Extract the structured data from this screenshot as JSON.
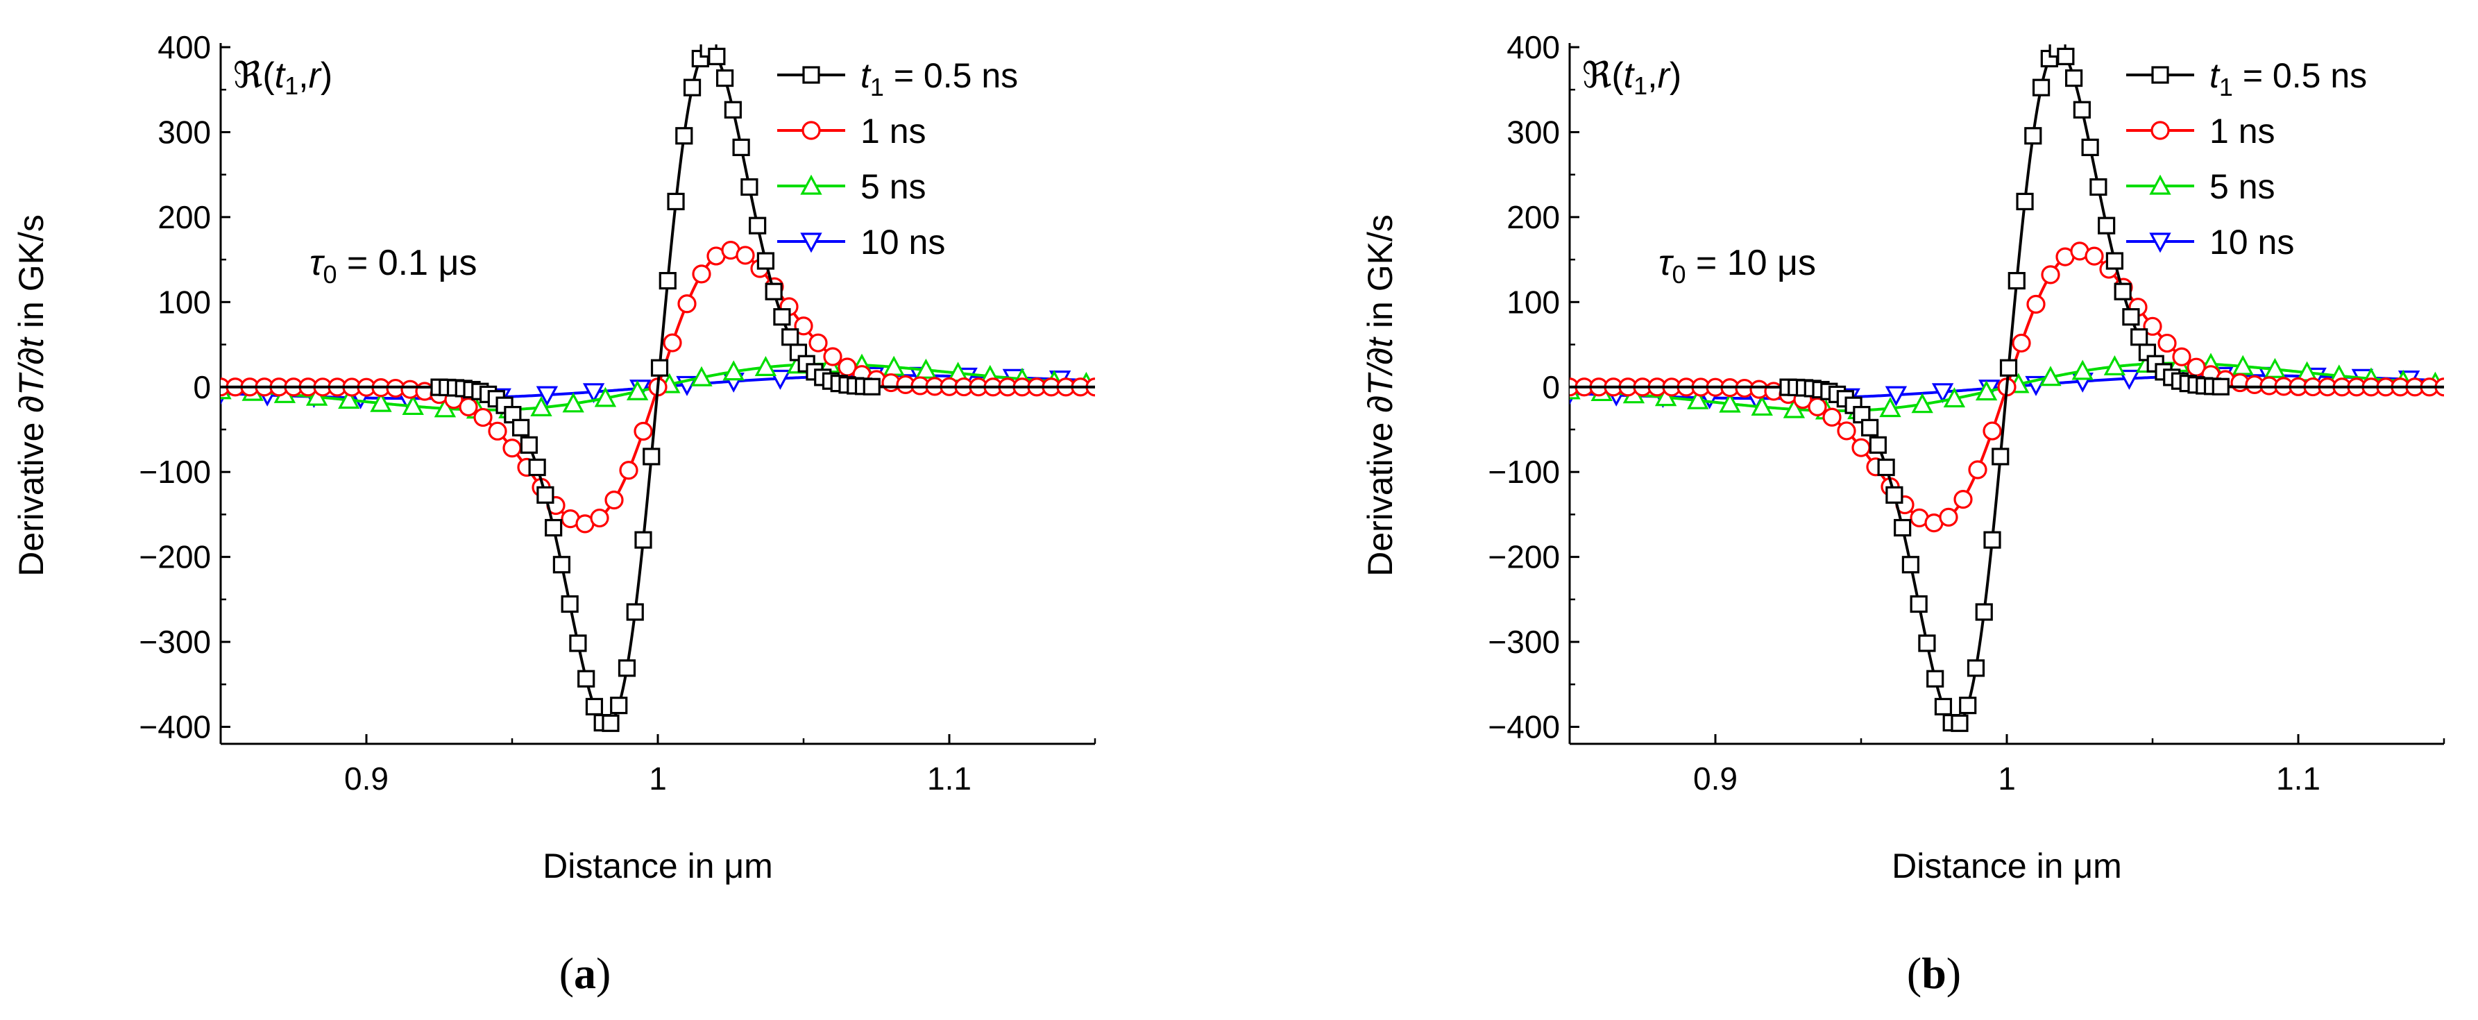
{
  "figure": {
    "panels": [
      {
        "caption_left": "(",
        "caption_letter": "a",
        "caption_right": ")",
        "corner_label": "ℜ(t1,r)",
        "corner_label_parts": {
          "re": "ℜ(",
          "t": "t",
          "sub": "1",
          "rest": ",",
          "r": "r",
          "close": ")"
        },
        "tau_label": {
          "sym": "τ",
          "sub": "0",
          "value": " = 0.1 μs"
        },
        "xlabel": "Distance in μm",
        "ylabel_parts": {
          "prefix": "Derivative ",
          "deriv": "∂T/∂t",
          "suffix": " in GK/s"
        }
      },
      {
        "caption_left": "(",
        "caption_letter": "b",
        "caption_right": ")",
        "corner_label": "ℜ(t1,r)",
        "corner_label_parts": {
          "re": "ℜ(",
          "t": "t",
          "sub": "1",
          "rest": ",",
          "r": "r",
          "close": ")"
        },
        "tau_label": {
          "sym": "τ",
          "sub": "0",
          "value": " = 10 μs"
        },
        "xlabel": "Distance in μm",
        "ylabel_parts": {
          "prefix": "Derivative ",
          "deriv": "∂T/∂t",
          "suffix": " in GK/s"
        }
      }
    ]
  },
  "chart_data": [
    {
      "type": "line",
      "panel": "a",
      "title": "",
      "xlabel": "Distance in μm",
      "ylabel": "Derivative ∂T/∂t in GK/s",
      "xlim": [
        0.85,
        1.15
      ],
      "ylim": [
        -420,
        400
      ],
      "xticks": [
        0.9,
        1.0,
        1.1
      ],
      "xtick_labels": [
        "0.9",
        "1",
        "1.1"
      ],
      "yticks": [
        -400,
        -300,
        -200,
        -100,
        0,
        100,
        200,
        300,
        400
      ],
      "ytick_labels": [
        "−400",
        "−300",
        "−200",
        "−100",
        "0",
        "100",
        "200",
        "300",
        "400"
      ],
      "legend_position": "top-right",
      "series": [
        {
          "name": "t1 = 0.5 ns",
          "legend_t": "t",
          "legend_sub": "1",
          "legend_rest": " = 0.5 ns",
          "color": "#000000",
          "marker": "square",
          "amplitude": 398,
          "center": 1.0,
          "width": 0.0175,
          "x_start": 0.925,
          "x_end": 1.075,
          "marker_step": 0.0028
        },
        {
          "name": "1 ns",
          "legend_t": "",
          "legend_sub": "",
          "legend_rest": "1 ns",
          "color": "#ff0000",
          "marker": "circle",
          "amplitude": 161,
          "center": 1.0,
          "width": 0.025,
          "x_start": 0.85,
          "x_end": 1.15,
          "marker_step": 0.005
        },
        {
          "name": "5 ns",
          "legend_t": "",
          "legend_sub": "",
          "legend_rest": "5 ns",
          "color": "#00dd00",
          "marker": "triangle-up",
          "amplitude": 27,
          "center": 1.0,
          "width": 0.058,
          "x_start": 0.85,
          "x_end": 1.15,
          "marker_step": 0.011
        },
        {
          "name": "10 ns",
          "legend_t": "",
          "legend_sub": "",
          "legend_rest": "10 ns",
          "color": "#0000ff",
          "marker": "triangle-down",
          "amplitude": 13.5,
          "center": 1.0,
          "width": 0.082,
          "x_start": 0.85,
          "x_end": 1.15,
          "marker_step": 0.016
        }
      ]
    },
    {
      "type": "line",
      "panel": "b",
      "title": "",
      "xlabel": "Distance in μm",
      "ylabel": "Derivative ∂T/∂t in GK/s",
      "xlim": [
        0.85,
        1.15
      ],
      "ylim": [
        -420,
        400
      ],
      "xticks": [
        0.9,
        1.0,
        1.1
      ],
      "xtick_labels": [
        "0.9",
        "1",
        "1.1"
      ],
      "yticks": [
        -400,
        -300,
        -200,
        -100,
        0,
        100,
        200,
        300,
        400
      ],
      "ytick_labels": [
        "−400",
        "−300",
        "−200",
        "−100",
        "0",
        "100",
        "200",
        "300",
        "400"
      ],
      "legend_position": "top-right",
      "series": [
        {
          "name": "t1 = 0.5 ns",
          "legend_t": "t",
          "legend_sub": "1",
          "legend_rest": " = 0.5 ns",
          "color": "#000000",
          "marker": "square",
          "amplitude": 398,
          "center": 1.0,
          "width": 0.0175,
          "x_start": 0.925,
          "x_end": 1.075,
          "marker_step": 0.0028
        },
        {
          "name": "1 ns",
          "legend_t": "",
          "legend_sub": "",
          "legend_rest": "1 ns",
          "color": "#ff0000",
          "marker": "circle",
          "amplitude": 160,
          "center": 1.0,
          "width": 0.025,
          "x_start": 0.85,
          "x_end": 1.15,
          "marker_step": 0.005
        },
        {
          "name": "5 ns",
          "legend_t": "",
          "legend_sub": "",
          "legend_rest": "5 ns",
          "color": "#00dd00",
          "marker": "triangle-up",
          "amplitude": 28,
          "center": 1.0,
          "width": 0.058,
          "x_start": 0.85,
          "x_end": 1.15,
          "marker_step": 0.011
        },
        {
          "name": "10 ns",
          "legend_t": "",
          "legend_sub": "",
          "legend_rest": "10 ns",
          "color": "#0000ff",
          "marker": "triangle-down",
          "amplitude": 13.5,
          "center": 1.0,
          "width": 0.082,
          "x_start": 0.85,
          "x_end": 1.15,
          "marker_step": 0.016
        }
      ]
    }
  ]
}
